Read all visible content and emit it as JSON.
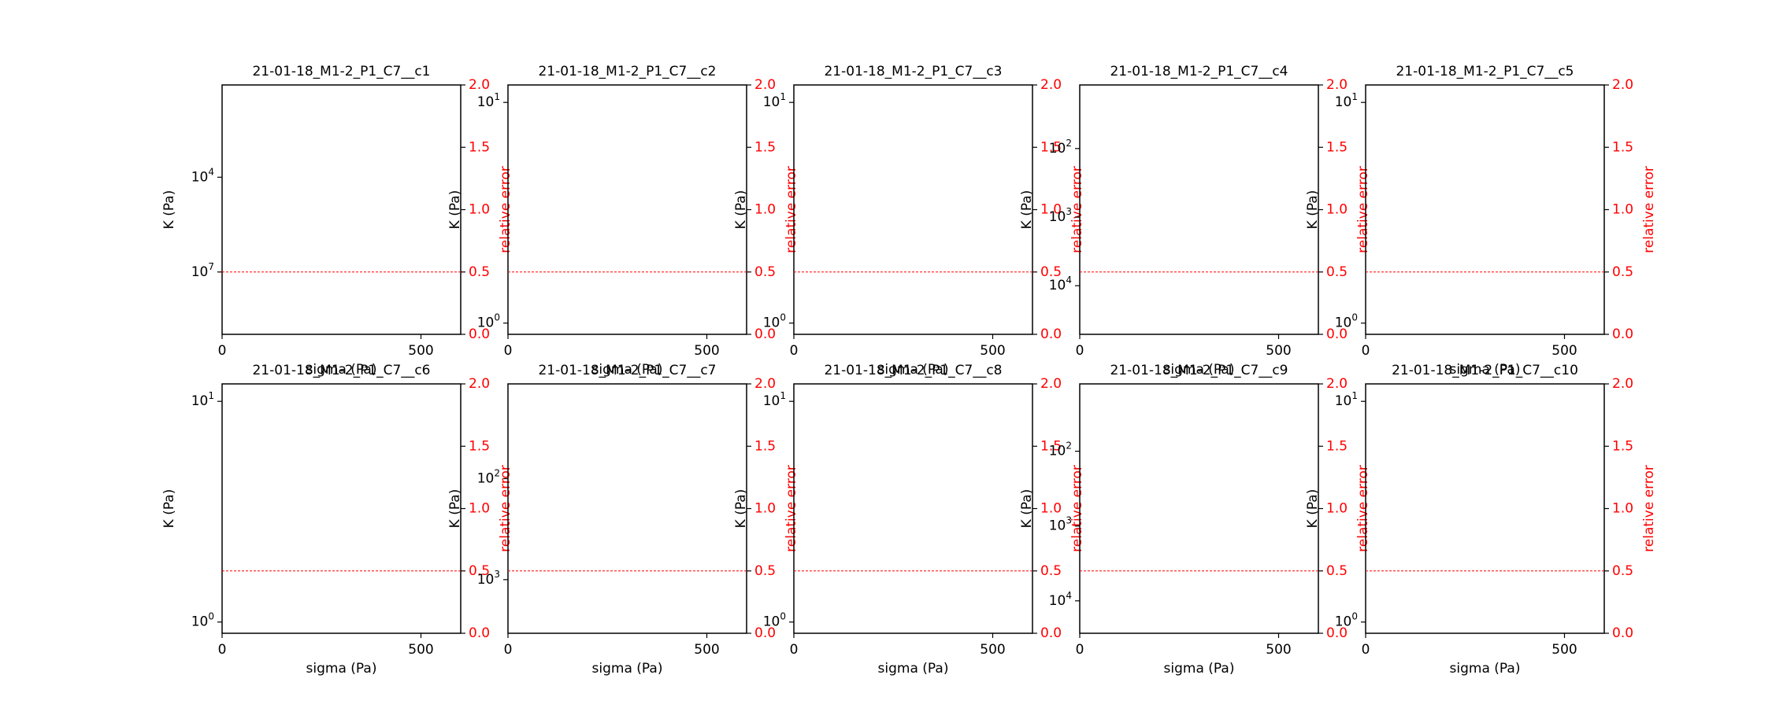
{
  "colors": {
    "axis": "#000000",
    "secondary_axis": "#ff0000",
    "threshold_line": "#ff0000",
    "background": "#ffffff"
  },
  "chart_data": [
    {
      "type": "line",
      "title": "21-01-18_M1-2_P1_C7__c1",
      "xlabel": "sigma (Pa)",
      "ylabel": "K (Pa)",
      "y2label": "relative error",
      "xlim": [
        0,
        600
      ],
      "xticks": [
        "0",
        "500"
      ],
      "yscale": "log",
      "yticks": [
        {
          "label": "10^4",
          "frac": 0.63
        },
        {
          "label": "10^7",
          "frac": 0.25
        }
      ],
      "y2lim": [
        0,
        2
      ],
      "y2ticks": [
        "0.0",
        "0.5",
        "1.0",
        "1.5",
        "2.0"
      ],
      "threshold": 0.5,
      "series": []
    },
    {
      "type": "line",
      "title": "21-01-18_M1-2_P1_C7__c2",
      "xlabel": "sigma (Pa)",
      "ylabel": "K (Pa)",
      "y2label": "relative error",
      "xlim": [
        0,
        600
      ],
      "xticks": [
        "0",
        "500"
      ],
      "yscale": "log",
      "yticks": [
        {
          "label": "10^1",
          "frac": 0.93
        },
        {
          "label": "10^0",
          "frac": 0.045
        }
      ],
      "y2lim": [
        0,
        2
      ],
      "y2ticks": [
        "0.0",
        "0.5",
        "1.0",
        "1.5",
        "2.0"
      ],
      "threshold": 0.5,
      "series": []
    },
    {
      "type": "line",
      "title": "21-01-18_M1-2_P1_C7__c3",
      "xlabel": "sigma (Pa)",
      "ylabel": "K (Pa)",
      "y2label": "relative error",
      "xlim": [
        0,
        600
      ],
      "xticks": [
        "0",
        "500"
      ],
      "yscale": "log",
      "yticks": [
        {
          "label": "10^1",
          "frac": 0.93
        },
        {
          "label": "10^0",
          "frac": 0.045
        }
      ],
      "y2lim": [
        0,
        2
      ],
      "y2ticks": [
        "0.0",
        "0.5",
        "1.0",
        "1.5",
        "2.0"
      ],
      "threshold": 0.5,
      "series": []
    },
    {
      "type": "line",
      "title": "21-01-18_M1-2_P1_C7__c4",
      "xlabel": "sigma (Pa)",
      "ylabel": "K (Pa)",
      "y2label": "relative error",
      "xlim": [
        0,
        600
      ],
      "xticks": [
        "0",
        "500"
      ],
      "yscale": "log",
      "yticks": [
        {
          "label": "10^2",
          "frac": 0.745
        },
        {
          "label": "10^3",
          "frac": 0.47
        },
        {
          "label": "10^4",
          "frac": 0.195
        }
      ],
      "y2lim": [
        0,
        2
      ],
      "y2ticks": [
        "0.0",
        "0.5",
        "1.0",
        "1.5",
        "2.0"
      ],
      "threshold": 0.5,
      "series": []
    },
    {
      "type": "line",
      "title": "21-01-18_M1-2_P1_C7__c5",
      "xlabel": "sigma (Pa)",
      "ylabel": "K (Pa)",
      "y2label": "relative error",
      "xlim": [
        0,
        600
      ],
      "xticks": [
        "0",
        "500"
      ],
      "yscale": "log",
      "yticks": [
        {
          "label": "10^1",
          "frac": 0.93
        },
        {
          "label": "10^0",
          "frac": 0.045
        }
      ],
      "y2lim": [
        0,
        2
      ],
      "y2ticks": [
        "0.0",
        "0.5",
        "1.0",
        "1.5",
        "2.0"
      ],
      "threshold": 0.5,
      "series": []
    },
    {
      "type": "line",
      "title": "21-01-18_M1-2_P1_C7__c6",
      "xlabel": "sigma (Pa)",
      "ylabel": "K (Pa)",
      "y2label": "relative error",
      "xlim": [
        0,
        600
      ],
      "xticks": [
        "0",
        "500"
      ],
      "yscale": "log",
      "yticks": [
        {
          "label": "10^1",
          "frac": 0.93
        },
        {
          "label": "10^0",
          "frac": 0.045
        }
      ],
      "y2lim": [
        0,
        2
      ],
      "y2ticks": [
        "0.0",
        "0.5",
        "1.0",
        "1.5",
        "2.0"
      ],
      "threshold": 0.5,
      "series": []
    },
    {
      "type": "line",
      "title": "21-01-18_M1-2_P1_C7__c7",
      "xlabel": "sigma (Pa)",
      "ylabel": "K (Pa)",
      "y2label": "relative error",
      "xlim": [
        0,
        600
      ],
      "xticks": [
        "0",
        "500"
      ],
      "yscale": "log",
      "yticks": [
        {
          "label": "10^2",
          "frac": 0.62
        },
        {
          "label": "10^3",
          "frac": 0.215
        }
      ],
      "y2lim": [
        0,
        2
      ],
      "y2ticks": [
        "0.0",
        "0.5",
        "1.0",
        "1.5",
        "2.0"
      ],
      "threshold": 0.5,
      "series": []
    },
    {
      "type": "line",
      "title": "21-01-18_M1-2_P1_C7__c8",
      "xlabel": "sigma (Pa)",
      "ylabel": "K (Pa)",
      "y2label": "relative error",
      "xlim": [
        0,
        600
      ],
      "xticks": [
        "0",
        "500"
      ],
      "yscale": "log",
      "yticks": [
        {
          "label": "10^1",
          "frac": 0.93
        },
        {
          "label": "10^0",
          "frac": 0.045
        }
      ],
      "y2lim": [
        0,
        2
      ],
      "y2ticks": [
        "0.0",
        "0.5",
        "1.0",
        "1.5",
        "2.0"
      ],
      "threshold": 0.5,
      "series": []
    },
    {
      "type": "line",
      "title": "21-01-18_M1-2_P1_C7__c9",
      "xlabel": "sigma (Pa)",
      "ylabel": "K (Pa)",
      "y2label": "relative error",
      "xlim": [
        0,
        600
      ],
      "xticks": [
        "0",
        "500"
      ],
      "yscale": "log",
      "yticks": [
        {
          "label": "10^2",
          "frac": 0.73
        },
        {
          "label": "10^3",
          "frac": 0.43
        },
        {
          "label": "10^4",
          "frac": 0.13
        }
      ],
      "y2lim": [
        0,
        2
      ],
      "y2ticks": [
        "0.0",
        "0.5",
        "1.0",
        "1.5",
        "2.0"
      ],
      "threshold": 0.5,
      "series": []
    },
    {
      "type": "line",
      "title": "21-01-18_M1-2_P1_C7__c10",
      "xlabel": "sigma (Pa)",
      "ylabel": "K (Pa)",
      "y2label": "relative error",
      "xlim": [
        0,
        600
      ],
      "xticks": [
        "0",
        "500"
      ],
      "yscale": "log",
      "yticks": [
        {
          "label": "10^1",
          "frac": 0.93
        },
        {
          "label": "10^0",
          "frac": 0.045
        }
      ],
      "y2lim": [
        0,
        2
      ],
      "y2ticks": [
        "0.0",
        "0.5",
        "1.0",
        "1.5",
        "2.0"
      ],
      "threshold": 0.5,
      "series": []
    }
  ]
}
